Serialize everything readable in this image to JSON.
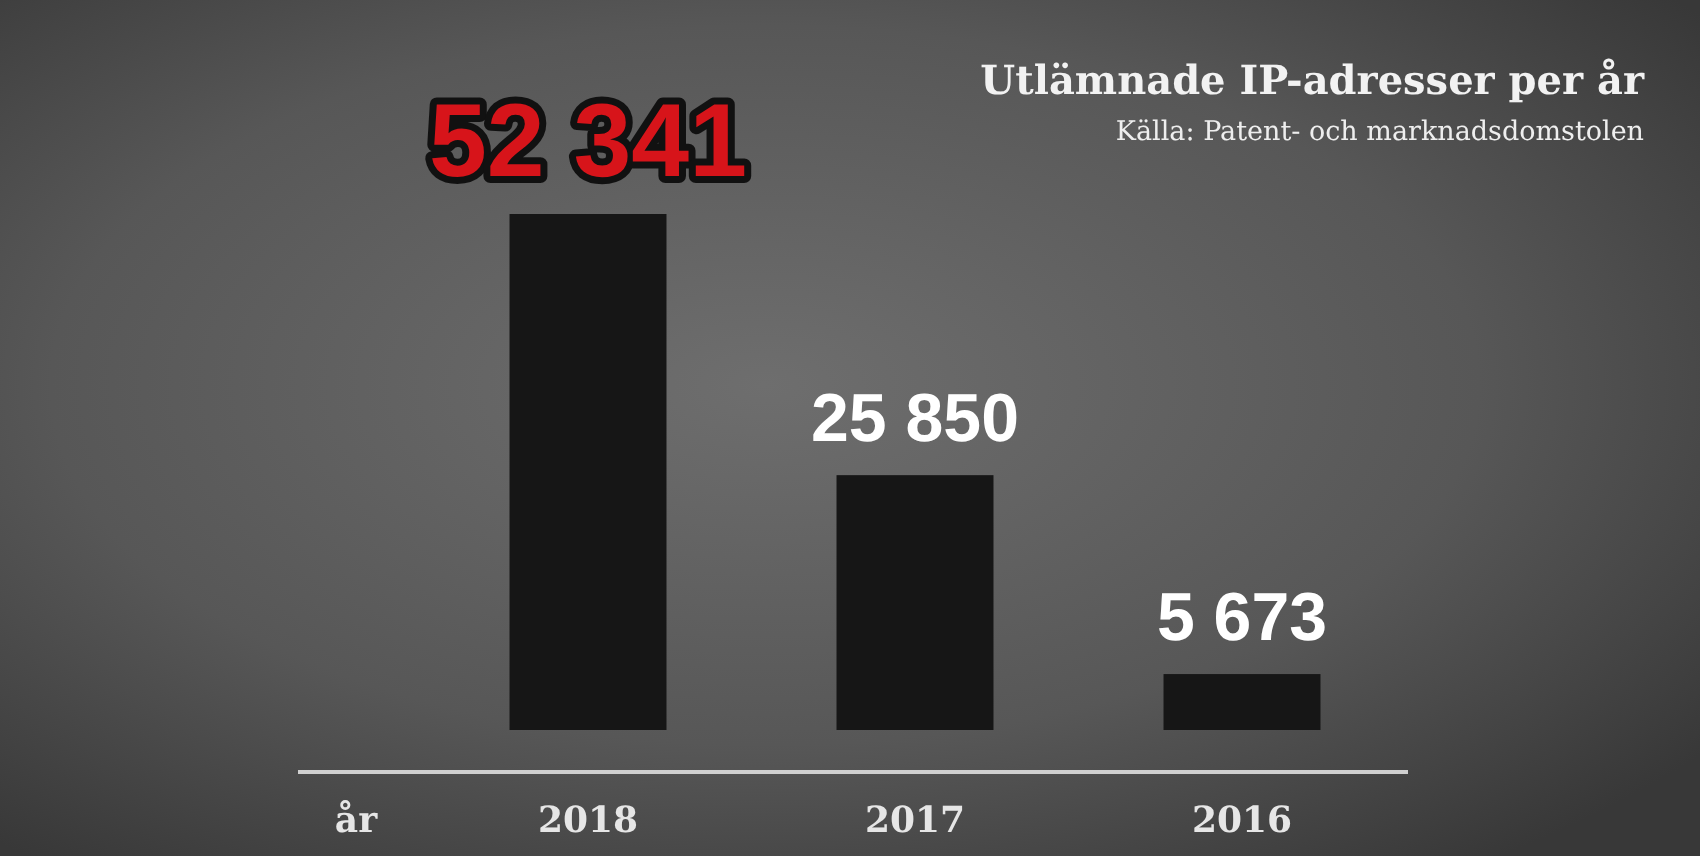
{
  "chart_data": {
    "type": "bar",
    "title": "Utlämnade IP-adresser per år",
    "xlabel": "år",
    "categories": [
      "2018",
      "2017",
      "2016"
    ],
    "values": [
      52341,
      25850,
      5673
    ],
    "color": "#161616",
    "value_labels": [
      "52 341",
      "25 850",
      "5 673"
    ],
    "annotations": [
      "Källa: Patent- och marknadsdomstolen"
    ]
  }
}
